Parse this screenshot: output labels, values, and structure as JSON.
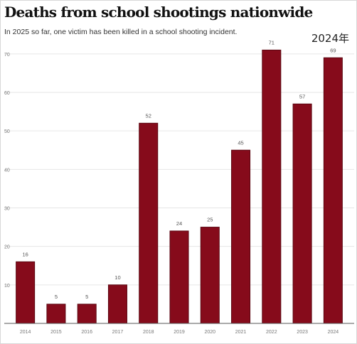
{
  "header": {
    "title": "Deaths from school shootings nationwide",
    "subtitle": "In 2025 so far, one victim has been killed in a school shooting incident.",
    "year_tag": "2024年"
  },
  "colors": {
    "bar_fill": "#860b1b",
    "bar_stroke": "#5a0611",
    "grid": "#e6e6e6",
    "axis": "#555555"
  },
  "chart_data": {
    "type": "bar",
    "categories": [
      "2014",
      "2015",
      "2016",
      "2017",
      "2018",
      "2019",
      "2020",
      "2021",
      "2022",
      "2023",
      "2024"
    ],
    "values": [
      16,
      5,
      5,
      10,
      52,
      24,
      25,
      45,
      71,
      57,
      69
    ],
    "data_labels": [
      "16",
      "5",
      "5",
      "10",
      "52",
      "24",
      "25",
      "45",
      "71",
      "57",
      "69"
    ],
    "y_ticks": [
      10,
      20,
      30,
      40,
      50,
      60,
      70
    ],
    "ylim": [
      0,
      72
    ],
    "grid": true,
    "legend": "none"
  }
}
